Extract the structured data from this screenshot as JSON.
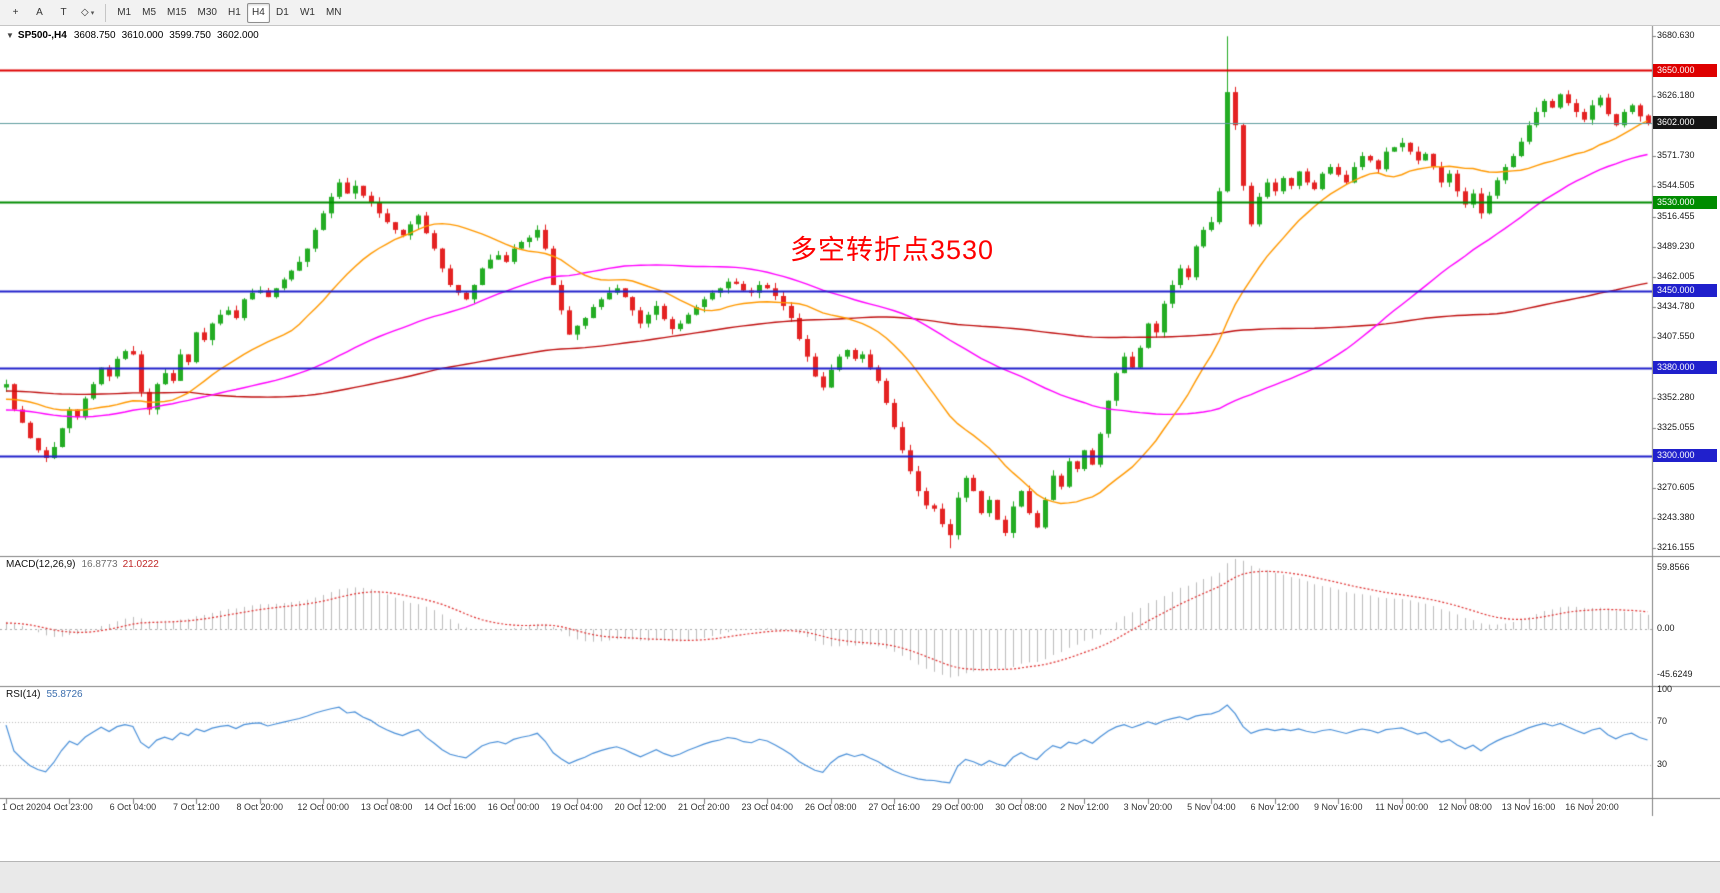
{
  "toolbar": {
    "tools": [
      {
        "name": "crosshair",
        "glyph": "+",
        "caret": false
      },
      {
        "name": "arrow-text-a",
        "glyph": "A",
        "caret": false
      },
      {
        "name": "text-label-t",
        "glyph": "T",
        "caret": false
      },
      {
        "name": "shapes",
        "glyph": "◇",
        "caret": true
      }
    ],
    "timeframes": [
      "M1",
      "M5",
      "M15",
      "M30",
      "H1",
      "H4",
      "D1",
      "W1",
      "MN"
    ],
    "active_timeframe": "H4"
  },
  "header": {
    "expander": "▼",
    "symbol": "SP500-,H4",
    "open": "3608.750",
    "high": "3610.000",
    "low": "3599.750",
    "close": "3602.000"
  },
  "annotation": {
    "text": "多空转折点3530",
    "color": "#FF0000"
  },
  "price_axis": {
    "labels": [
      "3680.630",
      "3626.180",
      "3571.730",
      "3544.505",
      "3516.455",
      "3489.230",
      "3462.005",
      "3434.780",
      "3407.550",
      "3352.280",
      "3325.055",
      "3270.605",
      "3243.380",
      "3216.155"
    ],
    "level_boxes": [
      {
        "label": "3650.000",
        "price": 3650,
        "color": "#DE0000",
        "type": "resistance-3650"
      },
      {
        "label": "3602.000",
        "price": 3602,
        "color": "#151515",
        "type": "current-price"
      },
      {
        "label": "3530.000",
        "price": 3530,
        "color": "#008C00",
        "type": "pivot-3530"
      },
      {
        "label": "3450.000",
        "price": 3450,
        "color": "#2020CC",
        "type": "support-3450"
      },
      {
        "label": "3380.000",
        "price": 3380,
        "color": "#2020CC",
        "type": "support-3380"
      },
      {
        "label": "3300.000",
        "price": 3300,
        "color": "#2020CC",
        "type": "support-3300"
      }
    ]
  },
  "indicators": {
    "macd": {
      "label": "MACD(12,26,9)",
      "value_main": "16.8773",
      "value_signal": "21.0222",
      "scale": [
        "59.8566",
        "0.00",
        "-45.6249"
      ]
    },
    "rsi": {
      "label": "RSI(14)",
      "value": "55.8726",
      "scale": [
        "100",
        "70",
        "30"
      ]
    }
  },
  "time_axis": [
    "1 Oct 2020",
    "4 Oct 23:00",
    "6 Oct 04:00",
    "7 Oct 12:00",
    "8 Oct 20:00",
    "12 Oct 00:00",
    "13 Oct 08:00",
    "14 Oct 16:00",
    "16 Oct 00:00",
    "19 Oct 04:00",
    "20 Oct 12:00",
    "21 Oct 20:00",
    "23 Oct 04:00",
    "26 Oct 08:00",
    "27 Oct 16:00",
    "29 Oct 00:00",
    "30 Oct 08:00",
    "2 Nov 12:00",
    "3 Nov 20:00",
    "5 Nov 04:00",
    "6 Nov 12:00",
    "9 Nov 16:00",
    "11 Nov 00:00",
    "12 Nov 08:00",
    "13 Nov 16:00",
    "16 Nov 20:00"
  ],
  "chart_data": {
    "type": "candlestick",
    "symbol": "SP500-",
    "timeframe": "H4",
    "bars_total": 208,
    "ylim": [
      3210,
      3690
    ],
    "time_labels_every": 8,
    "closes": [
      3365,
      3342,
      3330,
      3316,
      3305,
      3298,
      3308,
      3325,
      3342,
      3335,
      3352,
      3365,
      3380,
      3372,
      3388,
      3395,
      3392,
      3358,
      3342,
      3365,
      3375,
      3368,
      3392,
      3385,
      3412,
      3405,
      3420,
      3428,
      3432,
      3425,
      3442,
      3448,
      3450,
      3444,
      3452,
      3460,
      3468,
      3476,
      3488,
      3505,
      3520,
      3535,
      3548,
      3538,
      3545,
      3536,
      3530,
      3520,
      3512,
      3505,
      3500,
      3510,
      3518,
      3502,
      3488,
      3470,
      3455,
      3448,
      3442,
      3455,
      3470,
      3478,
      3482,
      3476,
      3488,
      3494,
      3498,
      3505,
      3488,
      3455,
      3432,
      3410,
      3418,
      3425,
      3435,
      3442,
      3448,
      3452,
      3444,
      3432,
      3420,
      3428,
      3436,
      3424,
      3415,
      3420,
      3428,
      3435,
      3442,
      3448,
      3452,
      3458,
      3456,
      3450,
      3448,
      3455,
      3452,
      3445,
      3436,
      3425,
      3406,
      3390,
      3372,
      3362,
      3378,
      3390,
      3396,
      3388,
      3392,
      3380,
      3368,
      3348,
      3326,
      3305,
      3286,
      3268,
      3255,
      3252,
      3238,
      3228,
      3262,
      3280,
      3268,
      3248,
      3260,
      3242,
      3230,
      3254,
      3268,
      3248,
      3235,
      3260,
      3282,
      3272,
      3295,
      3288,
      3305,
      3292,
      3320,
      3350,
      3375,
      3390,
      3380,
      3398,
      3420,
      3412,
      3438,
      3455,
      3470,
      3462,
      3490,
      3505,
      3512,
      3540,
      3630,
      3600,
      3545,
      3510,
      3535,
      3548,
      3540,
      3552,
      3545,
      3558,
      3548,
      3542,
      3556,
      3562,
      3555,
      3548,
      3562,
      3572,
      3568,
      3560,
      3576,
      3580,
      3584,
      3576,
      3568,
      3574,
      3562,
      3548,
      3556,
      3540,
      3528,
      3538,
      3520,
      3536,
      3550,
      3562,
      3572,
      3585,
      3600,
      3612,
      3622,
      3616,
      3628,
      3620,
      3612,
      3605,
      3618,
      3625,
      3610,
      3600,
      3612,
      3618,
      3608,
      3602
    ],
    "prehistory_anchors": [
      [
        -96,
        3520
      ],
      [
        -88,
        3460
      ],
      [
        -80,
        3400
      ],
      [
        -72,
        3340
      ],
      [
        -66,
        3280
      ],
      [
        -60,
        3310
      ],
      [
        -54,
        3350
      ],
      [
        -48,
        3370
      ],
      [
        -42,
        3330
      ],
      [
        -36,
        3290
      ],
      [
        -30,
        3320
      ],
      [
        -24,
        3360
      ],
      [
        -18,
        3350
      ],
      [
        -12,
        3340
      ],
      [
        -6,
        3355
      ],
      [
        -1,
        3362
      ]
    ],
    "extremes": {
      "high_bar": 154,
      "high": 3680.63,
      "low_bar": 119,
      "low": 3216.155
    },
    "last_bar": {
      "open": 3608.75,
      "high": 3610.0,
      "low": 3599.75,
      "close": 3602.0
    },
    "horizontal_lines": [
      {
        "price": 3650,
        "color": "#DE0000",
        "width": 2,
        "role": "resistance"
      },
      {
        "price": 3530,
        "color": "#008C00",
        "width": 2,
        "role": "pivot"
      },
      {
        "price": 3450,
        "color": "#2020CC",
        "width": 2,
        "role": "support"
      },
      {
        "price": 3380,
        "color": "#2020CC",
        "width": 2,
        "role": "support"
      },
      {
        "price": 3300,
        "color": "#2020CC",
        "width": 2,
        "role": "support"
      },
      {
        "price": 3602,
        "color": "#5F9EA0",
        "width": 1,
        "role": "bid-line"
      }
    ],
    "moving_averages": [
      {
        "period": 20,
        "color": "#FF9900"
      },
      {
        "period": 55,
        "color": "#FF00FF"
      },
      {
        "period": 120,
        "color": "#C01010"
      }
    ],
    "candle_colors": {
      "up": "#23AC23",
      "down": "#E42222"
    },
    "macd_params": [
      12,
      26,
      9
    ],
    "macd_range": [
      70,
      -56
    ],
    "macd_colors": {
      "histogram": "#BDBDBD",
      "signal": "#E03030"
    },
    "rsi_period": 14,
    "rsi_levels": [
      70,
      30
    ],
    "rsi_color": "#4A90D9"
  }
}
